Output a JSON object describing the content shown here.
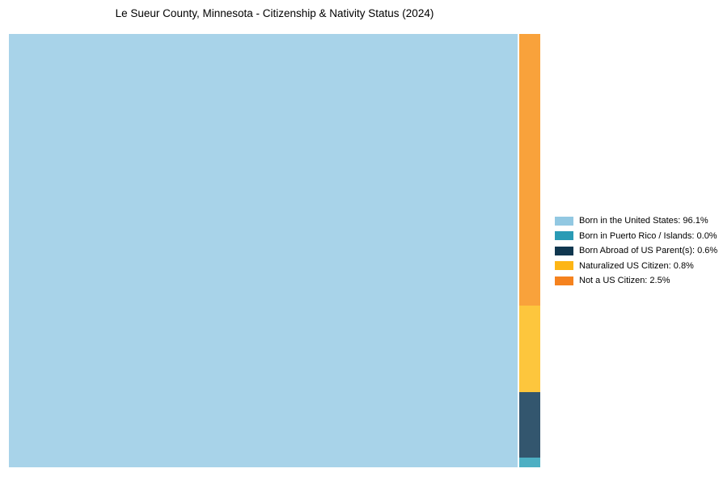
{
  "chart_data": {
    "type": "treemap",
    "title": "Le Sueur County, Minnesota - Citizenship & Nativity Status (2024)",
    "legend_position": "right-center",
    "background": "#ffffff",
    "categories": [
      "Born in the United States",
      "Born in Puerto Rico / Islands",
      "Born Abroad of US Parent(s)",
      "Naturalized US Citizen",
      "Not a US Citizen"
    ],
    "values": [
      96.1,
      0.0,
      0.6,
      0.8,
      2.5
    ],
    "items": [
      {
        "label": "Born in the United States",
        "value": 96.1,
        "legend_label": "Born in the United States: 96.1%",
        "legend_color": "#92C8E2",
        "fill": "#A8D3E9"
      },
      {
        "label": "Born in Puerto Rico / Islands",
        "value": 0.0,
        "legend_label": "Born in Puerto Rico / Islands: 0.0%",
        "legend_color": "#2A9BB5",
        "fill": "#4DAFC3"
      },
      {
        "label": "Born Abroad of US Parent(s)",
        "value": 0.6,
        "legend_label": "Born Abroad of US Parent(s): 0.6%",
        "legend_color": "#10374F",
        "fill": "#33566E"
      },
      {
        "label": "Naturalized US Citizen",
        "value": 0.8,
        "legend_label": "Naturalized US Citizen: 0.8%",
        "legend_color": "#FDB515",
        "fill": "#FDC63D"
      },
      {
        "label": "Not a US Citizen",
        "value": 2.5,
        "legend_label": "Not a US Citizen: 2.5%",
        "legend_color": "#F5821E",
        "fill": "#F9A23B"
      }
    ]
  }
}
